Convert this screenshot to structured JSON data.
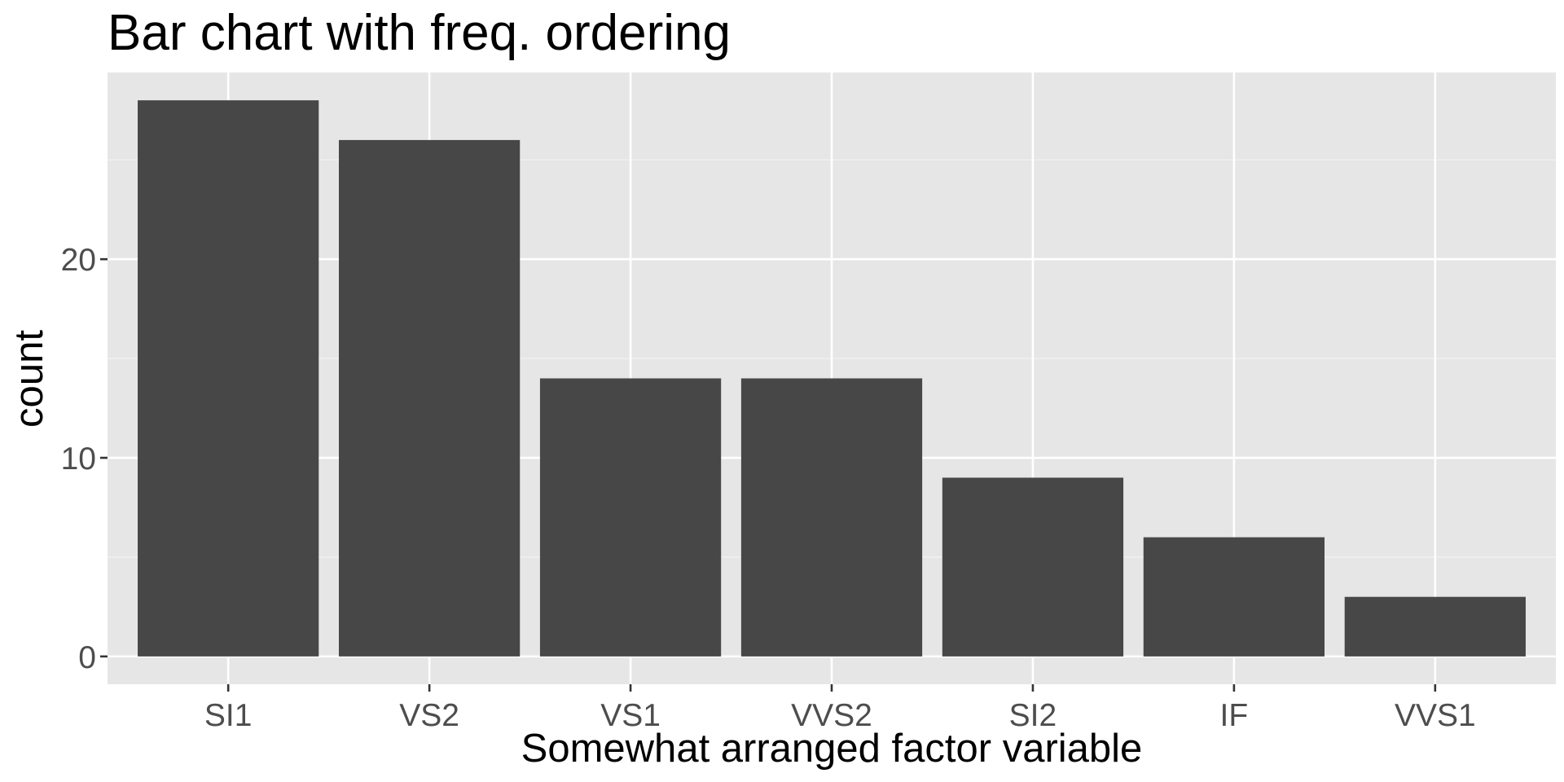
{
  "chart_data": {
    "type": "bar",
    "title": "Bar chart with freq. ordering",
    "xlabel": "Somewhat arranged factor variable",
    "ylabel": "count",
    "categories": [
      "SI1",
      "VS2",
      "VS1",
      "VVS2",
      "SI2",
      "IF",
      "VVS1"
    ],
    "values": [
      28,
      26,
      14,
      14,
      9,
      6,
      3
    ],
    "ylim": [
      -1.4,
      29.4
    ],
    "yticks": [
      0,
      10,
      20
    ],
    "ytick_labels": [
      "0",
      "10",
      "20"
    ],
    "grid": true,
    "legend": "none",
    "colors": {
      "bar": "#474747",
      "panel_background": "#e6e6e6",
      "grid_major": "#ffffff",
      "grid_minor": "#f2f2f2",
      "tick_label": "#4d4d4d",
      "tick_mark": "#333333"
    }
  }
}
